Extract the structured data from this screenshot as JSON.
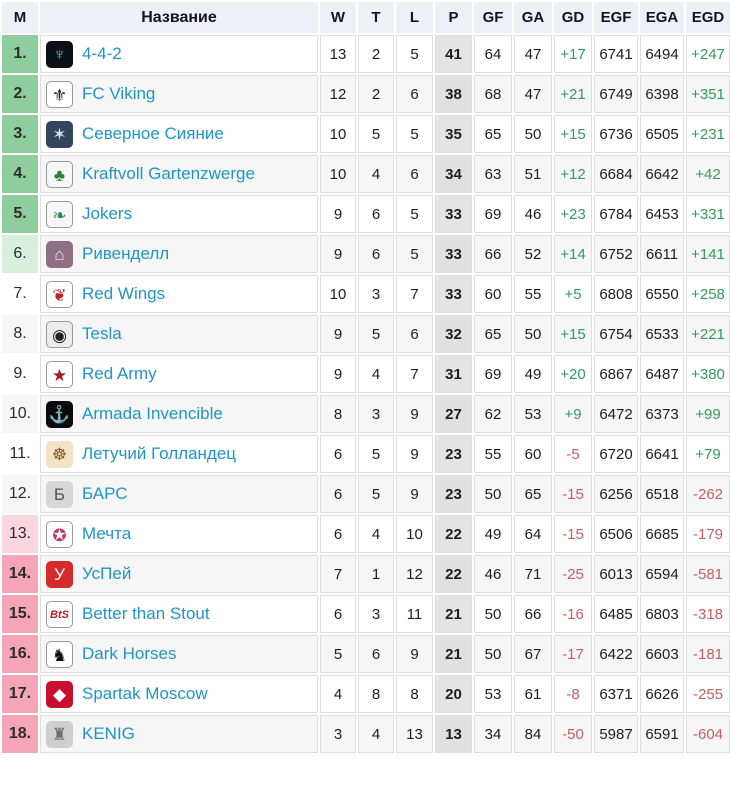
{
  "header": {
    "columns": [
      "М",
      "Название",
      "W",
      "T",
      "L",
      "P",
      "GF",
      "GA",
      "GD",
      "EGF",
      "EGA",
      "EGD"
    ]
  },
  "colors": {
    "header_bg": "#edf1f5",
    "zone_top": "#8fce9c",
    "zone_top_light": "#d9efdd",
    "zone_bottom_light": "#fbd6de",
    "zone_bottom": "#f4a6b8",
    "positive": "#339a5c",
    "negative": "#c4605f",
    "team_link": "#2095c5"
  },
  "rows": [
    {
      "place": "1.",
      "name": "4-4-2",
      "zone": "top",
      "icon": {
        "label": "team-logo",
        "glyph": "♆",
        "bg": "#0d1117",
        "fg": "#3fc6c0"
      },
      "w": "13",
      "t": "2",
      "l": "5",
      "p": "41",
      "gf": "64",
      "ga": "47",
      "gd": "+17",
      "egf": "6741",
      "ega": "6494",
      "egd": "+247"
    },
    {
      "place": "2.",
      "name": "FC Viking",
      "zone": "top",
      "icon": {
        "label": "team-logo",
        "glyph": "⚜",
        "bg": "#ffffff",
        "fg": "#1a1a1a",
        "border": true
      },
      "w": "12",
      "t": "2",
      "l": "6",
      "p": "38",
      "gf": "68",
      "ga": "47",
      "gd": "+21",
      "egf": "6749",
      "ega": "6398",
      "egd": "+351"
    },
    {
      "place": "3.",
      "name": "Северное Сияние",
      "zone": "top",
      "icon": {
        "label": "team-logo",
        "glyph": "✶",
        "bg": "#33455c",
        "fg": "#c8ecf2"
      },
      "w": "10",
      "t": "5",
      "l": "5",
      "p": "35",
      "gf": "65",
      "ga": "50",
      "gd": "+15",
      "egf": "6736",
      "ega": "6505",
      "egd": "+231"
    },
    {
      "place": "4.",
      "name": "Kraftvoll Gartenzwerge",
      "zone": "top",
      "icon": {
        "label": "team-logo",
        "glyph": "♣",
        "bg": "#f4f9f4",
        "fg": "#2e7d32",
        "border": true
      },
      "w": "10",
      "t": "4",
      "l": "6",
      "p": "34",
      "gf": "63",
      "ga": "51",
      "gd": "+12",
      "egf": "6684",
      "ega": "6642",
      "egd": "+42"
    },
    {
      "place": "5.",
      "name": "Jokers",
      "zone": "top",
      "icon": {
        "label": "team-logo",
        "glyph": "❧",
        "bg": "#f7f7f7",
        "fg": "#2e8b57",
        "border": true
      },
      "w": "9",
      "t": "6",
      "l": "5",
      "p": "33",
      "gf": "69",
      "ga": "46",
      "gd": "+23",
      "egf": "6784",
      "ega": "6453",
      "egd": "+331"
    },
    {
      "place": "6.",
      "name": "Ривенделл",
      "zone": "top-light",
      "icon": {
        "label": "team-logo",
        "glyph": "⌂",
        "bg": "#8e6f83",
        "fg": "#f5e9ee"
      },
      "w": "9",
      "t": "6",
      "l": "5",
      "p": "33",
      "gf": "66",
      "ga": "52",
      "gd": "+14",
      "egf": "6752",
      "ega": "6611",
      "egd": "+141"
    },
    {
      "place": "7.",
      "name": "Red Wings",
      "zone": "none",
      "icon": {
        "label": "team-logo",
        "glyph": "❦",
        "bg": "#ffffff",
        "fg": "#b3272d",
        "border": true
      },
      "w": "10",
      "t": "3",
      "l": "7",
      "p": "33",
      "gf": "60",
      "ga": "55",
      "gd": "+5",
      "egf": "6808",
      "ega": "6550",
      "egd": "+258"
    },
    {
      "place": "8.",
      "name": "Tesla",
      "zone": "none",
      "icon": {
        "label": "team-logo",
        "glyph": "◉",
        "bg": "#ececec",
        "fg": "#222222",
        "border": true
      },
      "w": "9",
      "t": "5",
      "l": "6",
      "p": "32",
      "gf": "65",
      "ga": "50",
      "gd": "+15",
      "egf": "6754",
      "ega": "6533",
      "egd": "+221"
    },
    {
      "place": "9.",
      "name": "Red Army",
      "zone": "none",
      "icon": {
        "label": "team-logo",
        "glyph": "★",
        "bg": "#ffffff",
        "fg": "#a51c1c",
        "border": true
      },
      "w": "9",
      "t": "4",
      "l": "7",
      "p": "31",
      "gf": "69",
      "ga": "49",
      "gd": "+20",
      "egf": "6867",
      "ega": "6487",
      "egd": "+380"
    },
    {
      "place": "10.",
      "name": "Armada Invencible",
      "zone": "none",
      "icon": {
        "label": "team-logo",
        "glyph": "⚓",
        "bg": "#0b0b0b",
        "fg": "#d9a441"
      },
      "w": "8",
      "t": "3",
      "l": "9",
      "p": "27",
      "gf": "62",
      "ga": "53",
      "gd": "+9",
      "egf": "6472",
      "ega": "6373",
      "egd": "+99"
    },
    {
      "place": "11.",
      "name": "Летучий Голландец",
      "zone": "none",
      "icon": {
        "label": "team-logo",
        "glyph": "☸",
        "bg": "#f2e3c6",
        "fg": "#8b5a2b"
      },
      "w": "6",
      "t": "5",
      "l": "9",
      "p": "23",
      "gf": "55",
      "ga": "60",
      "gd": "-5",
      "egf": "6720",
      "ega": "6641",
      "egd": "+79"
    },
    {
      "place": "12.",
      "name": "БАРС",
      "zone": "none",
      "icon": {
        "label": "team-logo",
        "glyph": "Б",
        "bg": "#d7d7d7",
        "fg": "#555555"
      },
      "w": "6",
      "t": "5",
      "l": "9",
      "p": "23",
      "gf": "50",
      "ga": "65",
      "gd": "-15",
      "egf": "6256",
      "ega": "6518",
      "egd": "-262"
    },
    {
      "place": "13.",
      "name": "Мечта",
      "zone": "bottom-light",
      "icon": {
        "label": "team-logo",
        "glyph": "✪",
        "bg": "#ffffff",
        "fg": "#c2356b",
        "border": true
      },
      "w": "6",
      "t": "4",
      "l": "10",
      "p": "22",
      "gf": "49",
      "ga": "64",
      "gd": "-15",
      "egf": "6506",
      "ega": "6685",
      "egd": "-179"
    },
    {
      "place": "14.",
      "name": "УсПей",
      "zone": "bottom",
      "icon": {
        "label": "team-logo",
        "glyph": "У",
        "bg": "#d42b2b",
        "fg": "#ffffff"
      },
      "w": "7",
      "t": "1",
      "l": "12",
      "p": "22",
      "gf": "46",
      "ga": "71",
      "gd": "-25",
      "egf": "6013",
      "ega": "6594",
      "egd": "-581"
    },
    {
      "place": "15.",
      "name": "Better than Stout",
      "zone": "bottom",
      "icon": {
        "label": "team-logo",
        "glyph": "BtS",
        "bg": "#ffffff",
        "fg": "#b22222",
        "border": true
      },
      "w": "6",
      "t": "3",
      "l": "11",
      "p": "21",
      "gf": "50",
      "ga": "66",
      "gd": "-16",
      "egf": "6485",
      "ega": "6803",
      "egd": "-318"
    },
    {
      "place": "16.",
      "name": "Dark Horses",
      "zone": "bottom",
      "icon": {
        "label": "team-logo",
        "glyph": "♞",
        "bg": "#ffffff",
        "fg": "#111111",
        "border": true
      },
      "w": "5",
      "t": "6",
      "l": "9",
      "p": "21",
      "gf": "50",
      "ga": "67",
      "gd": "-17",
      "egf": "6422",
      "ega": "6603",
      "egd": "-181"
    },
    {
      "place": "17.",
      "name": "Spartak Moscow",
      "zone": "bottom",
      "icon": {
        "label": "team-logo",
        "glyph": "◆",
        "bg": "#c8102e",
        "fg": "#ffffff"
      },
      "w": "4",
      "t": "8",
      "l": "8",
      "p": "20",
      "gf": "53",
      "ga": "61",
      "gd": "-8",
      "egf": "6371",
      "ega": "6626",
      "egd": "-255"
    },
    {
      "place": "18.",
      "name": "KENIG",
      "zone": "bottom",
      "icon": {
        "label": "team-logo",
        "glyph": "♜",
        "bg": "#cfcfcf",
        "fg": "#6f6f6f"
      },
      "w": "3",
      "t": "4",
      "l": "13",
      "p": "13",
      "gf": "34",
      "ga": "84",
      "gd": "-50",
      "egf": "5987",
      "ega": "6591",
      "egd": "-604"
    }
  ]
}
